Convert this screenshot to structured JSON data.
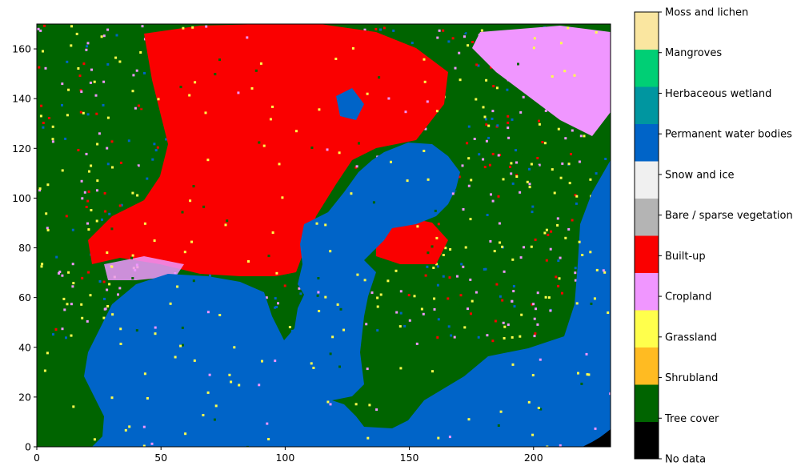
{
  "chart_data": {
    "type": "heatmap",
    "title": "",
    "xlabel": "",
    "ylabel": "",
    "xlim": [
      0,
      231
    ],
    "ylim": [
      0,
      170
    ],
    "x_ticks": [
      "0",
      "50",
      "100",
      "150",
      "200"
    ],
    "y_ticks": [
      "0",
      "20",
      "40",
      "60",
      "80",
      "100",
      "120",
      "140",
      "160"
    ],
    "grid": false,
    "legend_position": "right colorbar",
    "classes": [
      {
        "label": "No data",
        "color": "#000000"
      },
      {
        "label": "Tree cover",
        "color": "#006400"
      },
      {
        "label": "Shrubland",
        "color": "#ffbb22"
      },
      {
        "label": "Grassland",
        "color": "#ffff4c"
      },
      {
        "label": "Cropland",
        "color": "#f096ff"
      },
      {
        "label": "Built-up",
        "color": "#fa0000"
      },
      {
        "label": "Bare / sparse vegetation",
        "color": "#b4b4b4"
      },
      {
        "label": "Snow and ice",
        "color": "#f0f0f0"
      },
      {
        "label": "Permanent water bodies",
        "color": "#0064c8"
      },
      {
        "label": "Herbaceous wetland",
        "color": "#0096a0"
      },
      {
        "label": "Mangroves",
        "color": "#00cf75"
      },
      {
        "label": "Moss and lichen",
        "color": "#fae6a0"
      }
    ]
  }
}
